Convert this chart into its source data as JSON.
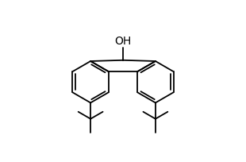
{
  "background": "#ffffff",
  "line_color": "#000000",
  "line_width": 1.3,
  "oh_label": "OH",
  "oh_fontsize": 10,
  "xlim": [
    -3.0,
    3.0
  ],
  "ylim": [
    -2.2,
    3.0
  ],
  "figsize": [
    3.1,
    2.04
  ],
  "dpi": 100
}
